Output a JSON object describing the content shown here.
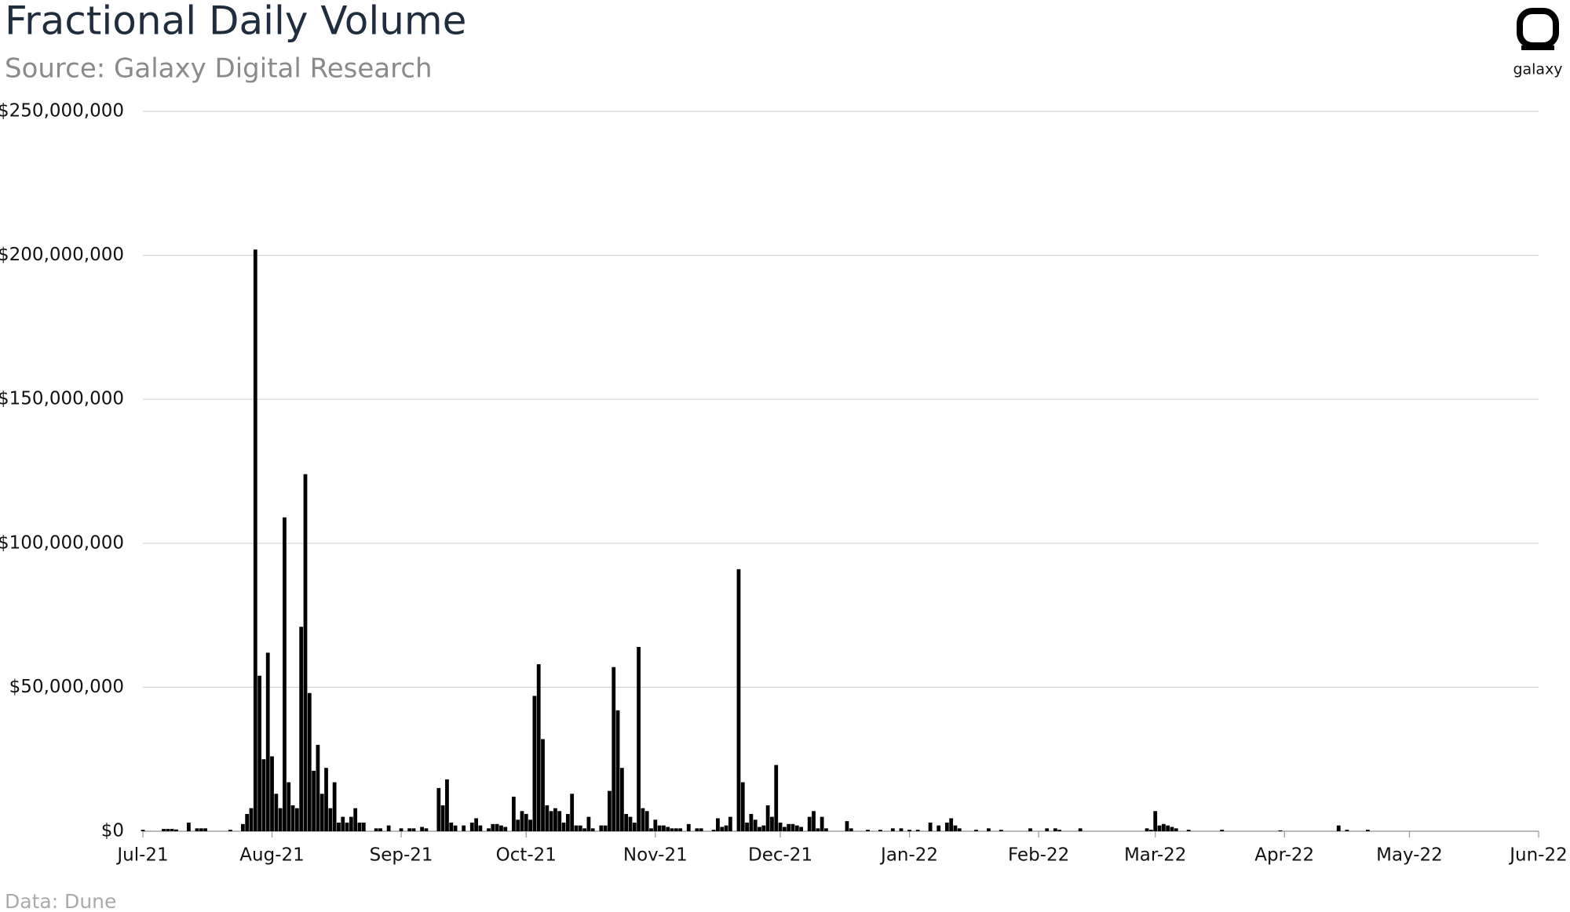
{
  "chart_data": {
    "type": "bar",
    "title": "Fractional Daily Volume",
    "subtitle": "Source: Galaxy Digital Research",
    "source_note": "Data: Dune",
    "logo_text": "galaxy",
    "color": "#000000",
    "grid": true,
    "ylim": [
      0,
      250000000
    ],
    "yticks": [
      {
        "value": 0,
        "label": "$0"
      },
      {
        "value": 50000000,
        "label": "$50,000,000"
      },
      {
        "value": 100000000,
        "label": "$100,000,000"
      },
      {
        "value": 150000000,
        "label": "$150,000,000"
      },
      {
        "value": 200000000,
        "label": "$200,000,000"
      },
      {
        "value": 250000000,
        "label": "$250,000,000"
      }
    ],
    "categories": [
      "Jul-21",
      null,
      null,
      null,
      null,
      null,
      null,
      null,
      null,
      null,
      null,
      null,
      null,
      null,
      null,
      null,
      null,
      null,
      null,
      null,
      null,
      null,
      null,
      null,
      null,
      null,
      null,
      null,
      null,
      null,
      null,
      "Aug-21",
      null,
      null,
      null,
      null,
      null,
      null,
      null,
      null,
      null,
      null,
      null,
      null,
      null,
      null,
      null,
      null,
      null,
      null,
      null,
      null,
      null,
      null,
      null,
      null,
      null,
      null,
      null,
      null,
      null,
      null,
      "Sep-21",
      null,
      null,
      null,
      null,
      null,
      null,
      null,
      null,
      null,
      null,
      null,
      null,
      null,
      null,
      null,
      null,
      null,
      null,
      null,
      null,
      null,
      null,
      null,
      null,
      null,
      null,
      null,
      null,
      null,
      "Oct-21",
      null,
      null,
      null,
      null,
      null,
      null,
      null,
      null,
      null,
      null,
      null,
      null,
      null,
      null,
      null,
      null,
      null,
      null,
      null,
      null,
      null,
      null,
      null,
      null,
      null,
      null,
      null,
      null,
      null,
      null,
      "Nov-21",
      null,
      null,
      null,
      null,
      null,
      null,
      null,
      null,
      null,
      null,
      null,
      null,
      null,
      null,
      null,
      null,
      null,
      null,
      null,
      null,
      null,
      null,
      null,
      null,
      null,
      null,
      null,
      null,
      null,
      "Dec-21",
      null,
      null,
      null,
      null,
      null,
      null,
      null,
      null,
      null,
      null,
      null,
      null,
      null,
      null,
      null,
      null,
      null,
      null,
      null,
      null,
      null,
      null,
      null,
      null,
      null,
      null,
      null,
      null,
      null,
      null,
      "Jan-22",
      null,
      null,
      null,
      null,
      null,
      null,
      null,
      null,
      null,
      null,
      null,
      null,
      null,
      null,
      null,
      null,
      null,
      null,
      null,
      null,
      null,
      null,
      null,
      null,
      null,
      null,
      null,
      null,
      null,
      null,
      "Feb-22",
      null,
      null,
      null,
      null,
      null,
      null,
      null,
      null,
      null,
      null,
      null,
      null,
      null,
      null,
      null,
      null,
      null,
      null,
      null,
      null,
      null,
      null,
      null,
      null,
      null,
      null,
      null,
      "Mar-22",
      null,
      null,
      null,
      null,
      null,
      null,
      null,
      null,
      null,
      null,
      null,
      null,
      null,
      null,
      null,
      null,
      null,
      null,
      null,
      null,
      null,
      null,
      null,
      null,
      null,
      null,
      null,
      null,
      null,
      null,
      "Apr-22",
      null,
      null,
      null,
      null,
      null,
      null,
      null,
      null,
      null,
      null,
      null,
      null,
      null,
      null,
      null,
      null,
      null,
      null,
      null,
      null,
      null,
      null,
      null,
      null,
      null,
      null,
      null,
      null,
      null,
      "May-22",
      null,
      null,
      null,
      null,
      null,
      null,
      null,
      null,
      null,
      null,
      null,
      null,
      null,
      null,
      null,
      null,
      null,
      null,
      null,
      null,
      null,
      null,
      null,
      null,
      null,
      null,
      null,
      null,
      null,
      null,
      "Jun-22"
    ],
    "values": [
      500000,
      0,
      0,
      0,
      0,
      800000,
      800000,
      800000,
      600000,
      0,
      0,
      3000000,
      0,
      1000000,
      1000000,
      1000000,
      0,
      0,
      0,
      0,
      0,
      500000,
      0,
      0,
      2500000,
      6000000,
      8000000,
      202000000,
      54000000,
      25000000,
      62000000,
      26000000,
      13000000,
      8000000,
      109000000,
      17000000,
      9000000,
      8000000,
      71000000,
      124000000,
      48000000,
      21000000,
      30000000,
      13000000,
      22000000,
      8000000,
      17000000,
      3000000,
      5000000,
      3000000,
      5000000,
      8000000,
      3000000,
      3000000,
      0,
      0,
      1000000,
      1000000,
      0,
      2000000,
      0,
      0,
      1000000,
      0,
      1000000,
      1000000,
      0,
      1500000,
      1000000,
      0,
      0,
      15000000,
      9000000,
      18000000,
      3000000,
      2000000,
      0,
      2000000,
      0,
      3000000,
      4500000,
      2000000,
      0,
      1000000,
      2500000,
      2500000,
      2000000,
      1500000,
      0,
      12000000,
      4000000,
      7000000,
      6000000,
      4000000,
      47000000,
      58000000,
      32000000,
      9000000,
      7000000,
      8000000,
      7000000,
      3000000,
      6000000,
      13000000,
      2000000,
      2000000,
      1000000,
      5000000,
      1000000,
      0,
      2000000,
      2000000,
      14000000,
      57000000,
      42000000,
      22000000,
      6000000,
      5000000,
      3000000,
      64000000,
      8000000,
      7000000,
      1000000,
      4000000,
      2000000,
      2000000,
      1500000,
      1000000,
      1000000,
      1000000,
      0,
      2500000,
      0,
      1000000,
      1000000,
      0,
      0,
      500000,
      4500000,
      1500000,
      2000000,
      5000000,
      0,
      91000000,
      17000000,
      3000000,
      6000000,
      4000000,
      1500000,
      2000000,
      9000000,
      5000000,
      23000000,
      3000000,
      1500000,
      2500000,
      2500000,
      2000000,
      1500000,
      0,
      5000000,
      7000000,
      1000000,
      5000000,
      1000000,
      0,
      0,
      0,
      0,
      3500000,
      1000000,
      0,
      0,
      0,
      500000,
      0,
      0,
      500000,
      0,
      0,
      1000000,
      0,
      1000000,
      0,
      500000,
      0,
      500000,
      0,
      0,
      3000000,
      0,
      2000000,
      0,
      3000000,
      4500000,
      2000000,
      1000000,
      0,
      0,
      0,
      500000,
      0,
      0,
      1000000,
      0,
      0,
      500000,
      0,
      0,
      0,
      0,
      0,
      0,
      1000000,
      0,
      0,
      0,
      1000000,
      0,
      1000000,
      500000,
      0,
      0,
      0,
      0,
      1000000,
      0,
      0,
      0,
      0,
      0,
      0,
      0,
      0,
      0,
      0,
      0,
      0,
      0,
      0,
      0,
      1000000,
      500000,
      7000000,
      2000000,
      2500000,
      2000000,
      1500000,
      1000000,
      0,
      0,
      500000,
      0,
      0,
      0,
      0,
      0,
      0,
      0,
      500000,
      0,
      0,
      0,
      0,
      0,
      0,
      0,
      0,
      0,
      0,
      0,
      0,
      0,
      300000,
      0,
      0,
      0,
      0,
      0,
      0,
      0,
      0,
      0,
      0,
      0,
      0,
      0,
      2000000,
      0,
      500000,
      0,
      0,
      0,
      0,
      500000,
      0,
      0,
      0,
      0,
      0,
      0,
      0,
      0,
      0,
      0,
      0,
      0,
      0,
      0,
      0,
      0,
      0,
      0,
      0,
      0,
      0,
      0,
      0,
      0,
      0,
      0,
      0,
      0,
      0,
      0,
      0,
      0,
      0,
      0,
      0,
      0,
      0,
      0,
      0,
      0,
      0
    ]
  }
}
